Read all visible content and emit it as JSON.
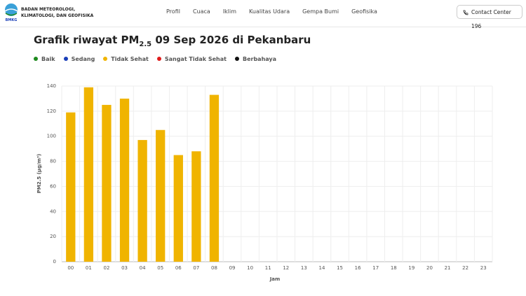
{
  "header": {
    "org_name": [
      "BADAN METEOROLOGI,",
      "KLIMATOLOGI, DAN GEOFISIKA"
    ],
    "logo_text": "BMKG",
    "nav": [
      "Profil",
      "Cuaca",
      "Iklim",
      "Kualitas Udara",
      "Gempa Bumi",
      "Geofisika"
    ],
    "contact": "Contact Center 196"
  },
  "chart_data": {
    "type": "bar",
    "title_parts": [
      "Grafik riwayat PM",
      "2.5",
      "09 Sep 2026 di Pekanbaru"
    ],
    "legend": [
      {
        "name": "Baik",
        "color": "#1e8a1e"
      },
      {
        "name": "Sedang",
        "color": "#1a3fb8"
      },
      {
        "name": "Tidak Sehat",
        "color": "#f0b400"
      },
      {
        "name": "Sangat Tidak Sehat",
        "color": "#e01b1b"
      },
      {
        "name": "Berbahaya",
        "color": "#111111"
      }
    ],
    "categories": [
      "00",
      "01",
      "02",
      "03",
      "04",
      "05",
      "06",
      "07",
      "08",
      "09",
      "10",
      "11",
      "12",
      "13",
      "14",
      "15",
      "16",
      "17",
      "18",
      "19",
      "20",
      "21",
      "22",
      "23"
    ],
    "values": [
      119,
      139,
      125,
      130,
      97,
      105,
      85,
      88,
      133,
      null,
      null,
      null,
      null,
      null,
      null,
      null,
      null,
      null,
      null,
      null,
      null,
      null,
      null,
      null
    ],
    "color": "#f0b400",
    "ylim": [
      0,
      140
    ],
    "yticks": [
      0,
      20,
      40,
      60,
      80,
      100,
      120,
      140
    ],
    "ylabel": "PM2.5 (µg/m³)",
    "xlabel": "Jam",
    "grid": true
  }
}
